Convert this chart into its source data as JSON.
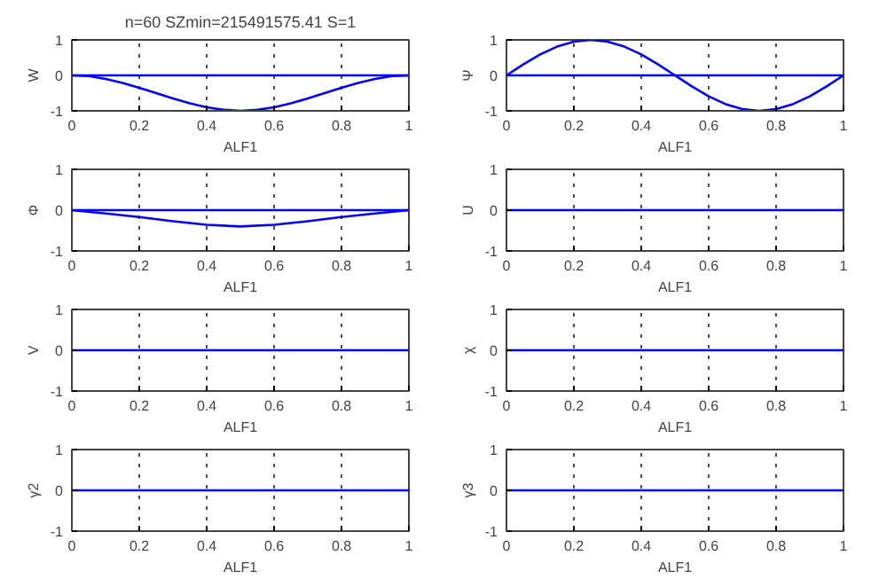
{
  "chart_data": [
    {
      "type": "line",
      "title": "n=60 SZmin=215491575.41 S=1",
      "xlabel": "ALF1",
      "ylabel": "W",
      "x": [
        0,
        0.05,
        0.1,
        0.15,
        0.2,
        0.25,
        0.3,
        0.35,
        0.4,
        0.45,
        0.5,
        0.55,
        0.6,
        0.65,
        0.7,
        0.75,
        0.8,
        0.85,
        0.9,
        0.95,
        1
      ],
      "series": [
        {
          "color": "#0000ff",
          "values": [
            0,
            -0.02,
            -0.1,
            -0.21,
            -0.35,
            -0.5,
            -0.65,
            -0.79,
            -0.9,
            -0.97,
            -1,
            -0.97,
            -0.9,
            -0.79,
            -0.65,
            -0.5,
            -0.35,
            -0.21,
            -0.1,
            -0.02,
            0
          ]
        }
      ],
      "ref_lines": [
        {
          "axis": "y",
          "value": 0,
          "color": "#0000ff"
        }
      ],
      "xlim": [
        0,
        1
      ],
      "ylim": [
        -1,
        1
      ],
      "xticks": [
        0,
        0.2,
        0.4,
        0.6,
        0.8,
        1
      ],
      "yticks": [
        -1,
        0,
        1
      ],
      "grid": "x",
      "line_style": "solid"
    },
    {
      "type": "line",
      "xlabel": "ALF1",
      "ylabel": "Ψ",
      "x": [
        0,
        0.05,
        0.1,
        0.15,
        0.2,
        0.25,
        0.3,
        0.35,
        0.4,
        0.45,
        0.5,
        0.55,
        0.6,
        0.65,
        0.7,
        0.75,
        0.8,
        0.85,
        0.9,
        0.95,
        1
      ],
      "series": [
        {
          "color": "#0000ff",
          "values": [
            0,
            0.31,
            0.59,
            0.81,
            0.95,
            1,
            0.95,
            0.81,
            0.59,
            0.31,
            0,
            -0.31,
            -0.59,
            -0.81,
            -0.95,
            -1,
            -0.95,
            -0.81,
            -0.59,
            -0.31,
            0
          ]
        }
      ],
      "ref_lines": [
        {
          "axis": "y",
          "value": 0,
          "color": "#0000ff"
        }
      ],
      "xlim": [
        0,
        1
      ],
      "ylim": [
        -1,
        1
      ],
      "xticks": [
        0,
        0.2,
        0.4,
        0.6,
        0.8,
        1
      ],
      "yticks": [
        -1,
        0,
        1
      ],
      "grid": "x",
      "line_style": "solid"
    },
    {
      "type": "line",
      "xlabel": "ALF1",
      "ylabel": "Φ",
      "x": [
        0,
        0.1,
        0.2,
        0.3,
        0.4,
        0.5,
        0.6,
        0.7,
        0.8,
        0.9,
        1
      ],
      "series": [
        {
          "color": "#0000ff",
          "values": [
            0,
            -0.08,
            -0.17,
            -0.27,
            -0.36,
            -0.4,
            -0.36,
            -0.27,
            -0.17,
            -0.08,
            0
          ]
        }
      ],
      "ref_lines": [
        {
          "axis": "y",
          "value": 0,
          "color": "#0000ff"
        }
      ],
      "xlim": [
        0,
        1
      ],
      "ylim": [
        -1,
        1
      ],
      "xticks": [
        0,
        0.2,
        0.4,
        0.6,
        0.8,
        1
      ],
      "yticks": [
        -1,
        0,
        1
      ],
      "grid": "x",
      "line_style": "solid"
    },
    {
      "type": "line",
      "xlabel": "ALF1",
      "ylabel": "U",
      "x": [
        0,
        1
      ],
      "series": [
        {
          "color": "#0000ff",
          "values": [
            0,
            0
          ]
        }
      ],
      "xlim": [
        0,
        1
      ],
      "ylim": [
        -1,
        1
      ],
      "xticks": [
        0,
        0.2,
        0.4,
        0.6,
        0.8,
        1
      ],
      "yticks": [
        -1,
        0,
        1
      ],
      "grid": "x",
      "line_style": "solid"
    },
    {
      "type": "line",
      "xlabel": "ALF1",
      "ylabel": "V",
      "x": [
        0,
        1
      ],
      "series": [
        {
          "color": "#0000ff",
          "values": [
            0,
            0
          ]
        }
      ],
      "xlim": [
        0,
        1
      ],
      "ylim": [
        -1,
        1
      ],
      "xticks": [
        0,
        0.2,
        0.4,
        0.6,
        0.8,
        1
      ],
      "yticks": [
        -1,
        0,
        1
      ],
      "grid": "x",
      "line_style": "solid"
    },
    {
      "type": "line",
      "xlabel": "ALF1",
      "ylabel": "χ",
      "x": [
        0,
        1
      ],
      "series": [
        {
          "color": "#0000ff",
          "values": [
            0,
            0
          ]
        }
      ],
      "xlim": [
        0,
        1
      ],
      "ylim": [
        -1,
        1
      ],
      "xticks": [
        0,
        0.2,
        0.4,
        0.6,
        0.8,
        1
      ],
      "yticks": [
        -1,
        0,
        1
      ],
      "grid": "x",
      "line_style": "solid"
    },
    {
      "type": "line",
      "xlabel": "ALF1",
      "ylabel": "γ2",
      "x": [
        0,
        1
      ],
      "series": [
        {
          "color": "#0000ff",
          "values": [
            0,
            0
          ]
        }
      ],
      "xlim": [
        0,
        1
      ],
      "ylim": [
        -1,
        1
      ],
      "xticks": [
        0,
        0.2,
        0.4,
        0.6,
        0.8,
        1
      ],
      "yticks": [
        -1,
        0,
        1
      ],
      "grid": "x",
      "line_style": "solid"
    },
    {
      "type": "line",
      "xlabel": "ALF1",
      "ylabel": "γ3",
      "x": [
        0,
        1
      ],
      "series": [
        {
          "color": "#0000ff",
          "values": [
            0,
            0
          ]
        }
      ],
      "xlim": [
        0,
        1
      ],
      "ylim": [
        -1,
        1
      ],
      "xticks": [
        0,
        0.2,
        0.4,
        0.6,
        0.8,
        1
      ],
      "yticks": [
        -1,
        0,
        1
      ],
      "grid": "x",
      "line_style": "solid"
    }
  ]
}
